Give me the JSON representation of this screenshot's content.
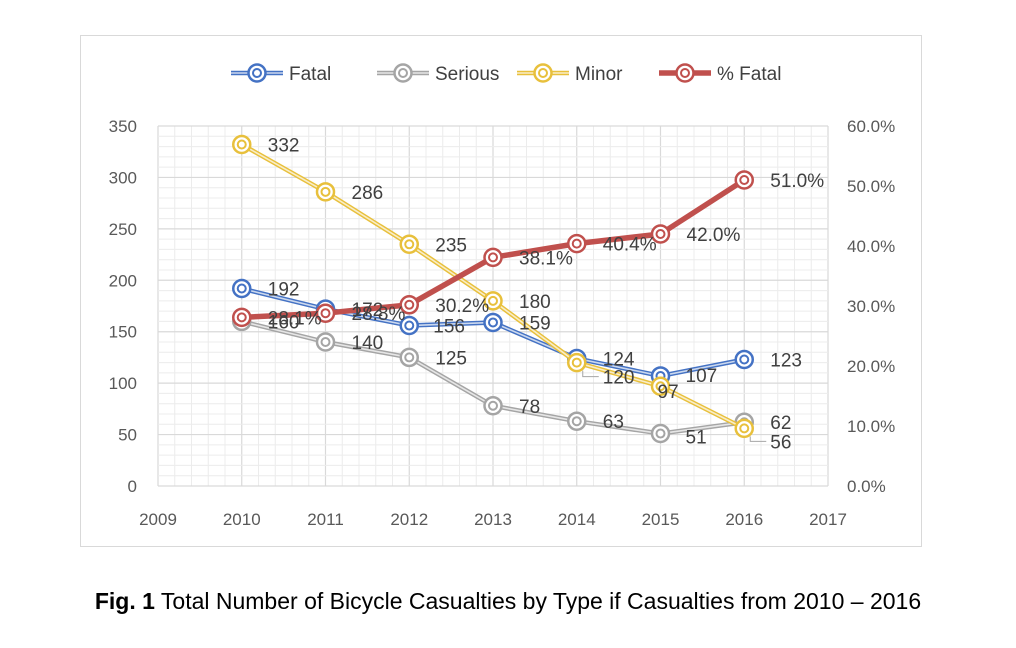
{
  "chart_data": {
    "type": "line",
    "x": [
      2010,
      2011,
      2012,
      2013,
      2014,
      2015,
      2016
    ],
    "xlim": [
      2009,
      2017
    ],
    "x_ticks": [
      "2009",
      "2010",
      "2011",
      "2012",
      "2013",
      "2014",
      "2015",
      "2016",
      "2017"
    ],
    "ylim": [
      0,
      350
    ],
    "y_ticks": [
      "0",
      "50",
      "100",
      "150",
      "200",
      "250",
      "300",
      "350"
    ],
    "y2lim": [
      0,
      60
    ],
    "y2_ticks": [
      "0.0%",
      "10.0%",
      "20.0%",
      "30.0%",
      "40.0%",
      "50.0%",
      "60.0%"
    ],
    "grid": true,
    "legend_position": "top",
    "series": [
      {
        "name": "Fatal",
        "axis": "left",
        "color": "#4472c4",
        "values": [
          192,
          172,
          156,
          159,
          124,
          107,
          123
        ],
        "labels": [
          "192",
          "172",
          "156",
          "159",
          "124",
          "107",
          "123"
        ]
      },
      {
        "name": "Serious",
        "axis": "left",
        "color": "#a5a5a5",
        "values": [
          160,
          140,
          125,
          78,
          63,
          51,
          62
        ],
        "labels": [
          "160",
          "140",
          "125",
          "78",
          "63",
          "51",
          "62"
        ]
      },
      {
        "name": "Minor",
        "axis": "left",
        "color": "#e8c03c",
        "values": [
          332,
          286,
          235,
          180,
          120,
          97,
          56
        ],
        "labels": [
          "332",
          "286",
          "235",
          "180",
          "120",
          "97",
          "56"
        ]
      },
      {
        "name": "% Fatal",
        "axis": "right",
        "color": "#c0504d",
        "values": [
          28.1,
          28.8,
          30.2,
          38.1,
          40.4,
          42.0,
          51.0
        ],
        "labels": [
          "28.1%",
          "28.8%",
          "30.2%",
          "38.1%",
          "40.4%",
          "42.0%",
          "51.0%"
        ]
      }
    ]
  },
  "caption": {
    "bold": "Fig. 1",
    "text": " Total Number of Bicycle Casualties by Type if Casualties from 2010 – 2016"
  }
}
